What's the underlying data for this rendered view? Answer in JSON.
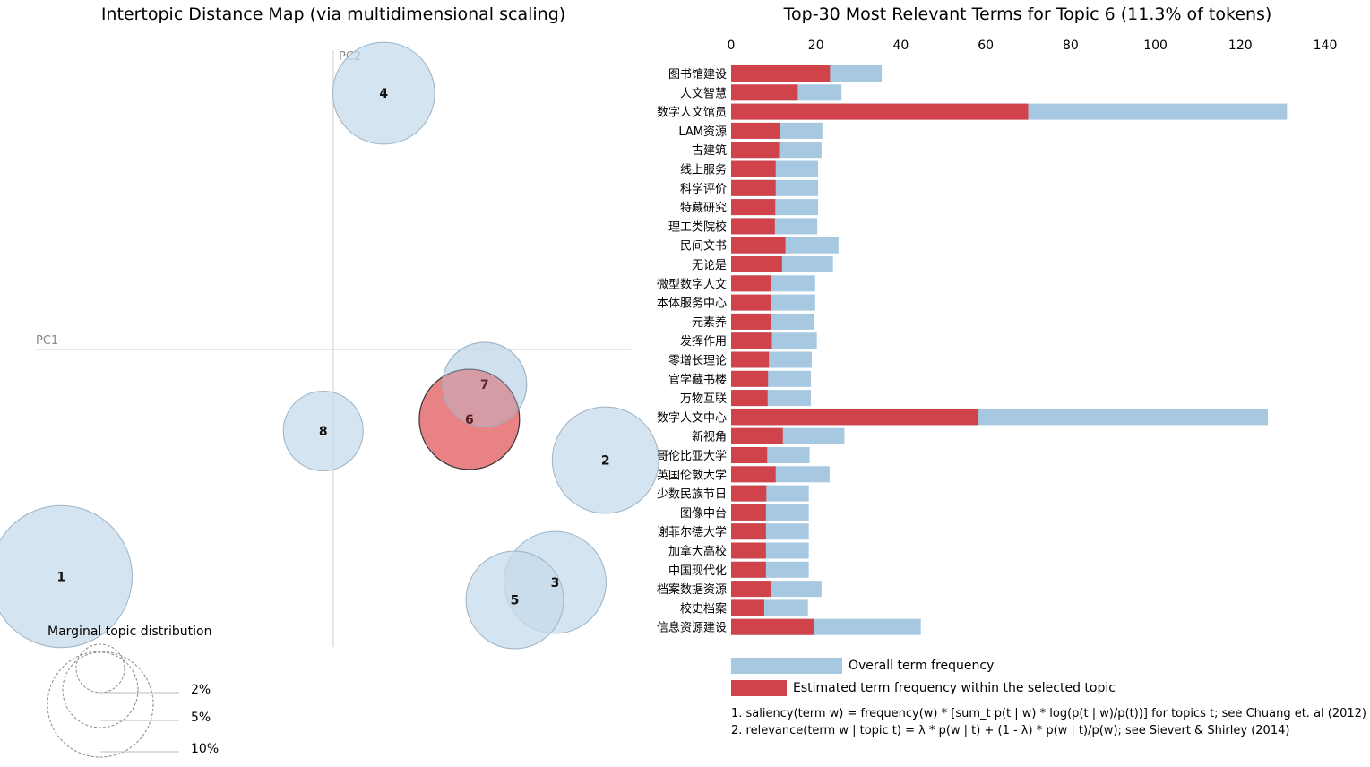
{
  "left_title": "Intertopic Distance Map (via multidimensional scaling)",
  "right_title": "Top-30 Most Relevant Terms for Topic 6 (11.3% of tokens)",
  "pc1_label": "PC1",
  "pc2_label": "PC2",
  "marginal": {
    "title": "Marginal topic distribution",
    "labels": [
      "2%",
      "5%",
      "10%"
    ]
  },
  "legend": {
    "overall": "Overall term frequency",
    "estimated": "Estimated term frequency within the selected topic"
  },
  "footnotes": [
    "1. saliency(term w) = frequency(w) * [sum_t p(t | w) * log(p(t | w)/p(t))] for topics t; see Chuang et. al (2012)",
    "2. relevance(term w | topic t) = λ * p(w | t) + (1 - λ) * p(w | t)/p(w); see Sievert & Shirley (2014)"
  ],
  "colors": {
    "overall_bar": "#a6c8e0",
    "topic_bar": "#d0434b",
    "circle_fill": "#c6dbeb",
    "selected_circle": "#e05256",
    "axis_line": "#cccccc"
  },
  "chart_data": [
    {
      "type": "scatter",
      "title": "Intertopic Distance Map (via multidimensional scaling)",
      "xlabel": "PC1",
      "ylabel": "PC2",
      "selected_topic": "6",
      "topics": [
        {
          "id": "1",
          "pc1": -0.27,
          "pc2": -0.195,
          "size": 16.0
        },
        {
          "id": "2",
          "pc1": 0.27,
          "pc2": -0.095,
          "size": 12.0
        },
        {
          "id": "3",
          "pc1": 0.22,
          "pc2": -0.2,
          "size": 11.5
        },
        {
          "id": "4",
          "pc1": 0.05,
          "pc2": 0.22,
          "size": 11.5
        },
        {
          "id": "5",
          "pc1": 0.18,
          "pc2": -0.215,
          "size": 11.0
        },
        {
          "id": "6",
          "pc1": 0.135,
          "pc2": -0.06,
          "size": 11.3
        },
        {
          "id": "7",
          "pc1": 0.15,
          "pc2": -0.03,
          "size": 9.5
        },
        {
          "id": "8",
          "pc1": -0.01,
          "pc2": -0.07,
          "size": 9.0
        }
      ]
    },
    {
      "type": "bar",
      "title": "Top-30 Most Relevant Terms for Topic 6 (11.3% of tokens)",
      "xlim": [
        0,
        140
      ],
      "xticks": [
        0,
        20,
        40,
        60,
        80,
        100,
        120,
        140
      ],
      "categories": [
        "图书馆建设",
        "人文智慧",
        "数字人文馆员",
        "LAM资源",
        "古建筑",
        "线上服务",
        "科学评价",
        "特藏研究",
        "理工类院校",
        "民间文书",
        "无论是",
        "微型数字人文",
        "本体服务中心",
        "元素养",
        "发挥作用",
        "零增长理论",
        "官学藏书楼",
        "万物互联",
        "数字人文中心",
        "新视角",
        "哥伦比亚大学",
        "英国伦敦大学",
        "少数民族节日",
        "图像中台",
        "谢菲尔德大学",
        "加拿大高校",
        "中国现代化",
        "档案数据资源",
        "校史档案",
        "信息资源建设"
      ],
      "series": [
        {
          "name": "Overall term frequency",
          "values": [
            35.5,
            26,
            131,
            21.5,
            21.3,
            20.5,
            20.5,
            20.5,
            20.3,
            25.3,
            24,
            19.8,
            19.8,
            19.6,
            20.2,
            19,
            18.8,
            18.8,
            126.5,
            26.7,
            18.5,
            23.2,
            18.3,
            18.3,
            18.3,
            18.3,
            18.3,
            21.3,
            18.1,
            44.7
          ]
        },
        {
          "name": "Estimated term frequency within the selected topic",
          "values": [
            23.3,
            15.7,
            70,
            11.5,
            11.3,
            10.5,
            10.5,
            10.4,
            10.3,
            12.8,
            12,
            9.5,
            9.5,
            9.4,
            9.6,
            8.9,
            8.7,
            8.6,
            58.3,
            12.2,
            8.5,
            10.5,
            8.3,
            8.2,
            8.2,
            8.2,
            8.2,
            9.5,
            7.8,
            19.5
          ]
        }
      ]
    }
  ]
}
